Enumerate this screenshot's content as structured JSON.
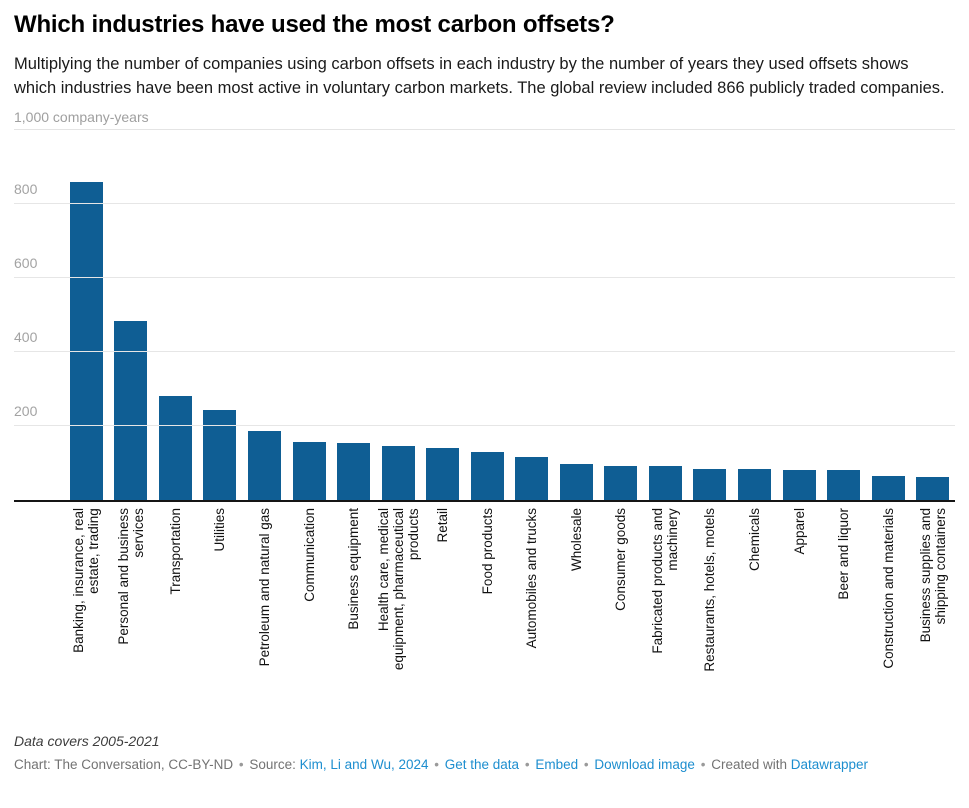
{
  "header": {
    "title": "Which industries have used the most carbon offsets?",
    "description": "Multiplying the number of companies using carbon offsets in each industry by the number of years they used offsets shows which industries have been most active in voluntary carbon markets. The global review included 866 publicly traded companies."
  },
  "chart_data": {
    "type": "bar",
    "title": "Which industries have used the most carbon offsets?",
    "unit_label": "1,000 company-years",
    "xlabel": "",
    "ylabel": "company-years",
    "ylim": [
      0,
      1000
    ],
    "y_ticks": [
      200,
      400,
      600,
      800
    ],
    "grid": "horizontal",
    "bar_color": "#0f5e94",
    "categories": [
      "Banking, insurance, real\nestate, trading",
      "Personal and business\nservices",
      "Transportation",
      "Utilities",
      "Petroleum and natural gas",
      "Communication",
      "Business equipment",
      "Health care, medical\nequipment, pharmaceutical\nproducts",
      "Retail",
      "Food products",
      "Automobiles and trucks",
      "Wholesale",
      "Consumer goods",
      "Fabricated products and\nmachinery",
      "Restaurants, hotels, motels",
      "Chemicals",
      "Apparel",
      "Beer and liquor",
      "Construction and materials",
      "Business supplies and\nshipping containers"
    ],
    "values": [
      860,
      485,
      282,
      243,
      187,
      156,
      154,
      146,
      141,
      130,
      117,
      96,
      93,
      92,
      85,
      83,
      82,
      80,
      66,
      63
    ]
  },
  "footer": {
    "note": "Data covers 2005-2021",
    "chart_credit": "Chart: The Conversation, CC-BY-ND",
    "separator": "•",
    "source_label": "Source:",
    "source_link": "Kim, Li and Wu, 2024",
    "get_data": "Get the data",
    "embed": "Embed",
    "download": "Download image",
    "created_with": "Created with",
    "created_link": "Datawrapper"
  }
}
